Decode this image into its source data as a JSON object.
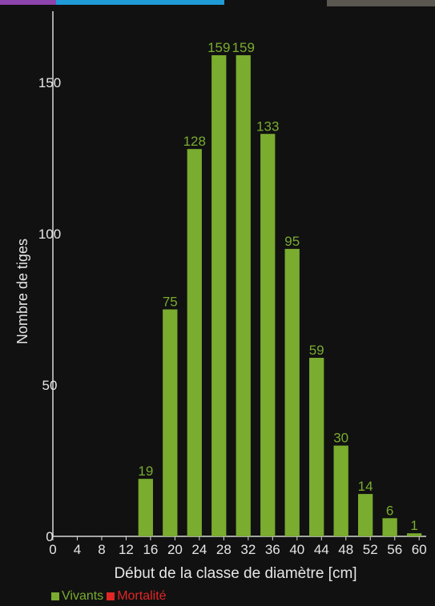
{
  "chart_data": {
    "type": "bar",
    "title": "",
    "xlabel": "Début de la classe de diamètre [cm]",
    "ylabel": "Nombre de tiges",
    "x_ticks": [
      "0",
      "4",
      "8",
      "12",
      "16",
      "20",
      "24",
      "28",
      "32",
      "36",
      "40",
      "44",
      "48",
      "52",
      "56",
      "60"
    ],
    "ylim": [
      0,
      170
    ],
    "y_ticks": [
      "0",
      "50",
      "100",
      "150"
    ],
    "grid": false,
    "bar_start": [
      14,
      18,
      22,
      26,
      30,
      34,
      38,
      42,
      46,
      50,
      54,
      58
    ],
    "bar_width": 2.4,
    "series": [
      {
        "name": "Vivants",
        "color": "#7aac2f",
        "values": [
          19,
          75,
          128,
          159,
          159,
          133,
          95,
          59,
          30,
          14,
          6,
          1
        ],
        "labels": [
          "19",
          "75",
          "128",
          "159",
          "159",
          "133",
          "95",
          "59",
          "30",
          "14",
          "6",
          "1"
        ]
      }
    ],
    "legend": {
      "position": "bottom-left",
      "items": [
        {
          "label": "Vivants",
          "color": "#7aac2f"
        },
        {
          "label": "Mortalité",
          "color": "#e22626"
        }
      ]
    }
  }
}
